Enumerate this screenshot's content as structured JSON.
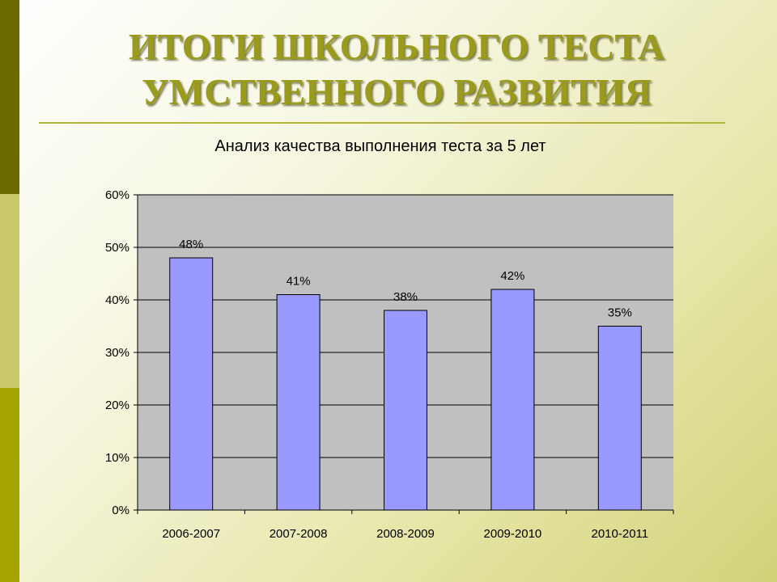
{
  "slide": {
    "title_line1": "ИТОГИ ШКОЛЬНОГО ТЕСТА",
    "title_line2": "УМСТВЕННОГО РАЗВИТИЯ"
  },
  "colors": {
    "bar_fill": "#9999ff",
    "plot_background": "#c0c0c0",
    "title": "#9a9a1c"
  },
  "chart_data": {
    "type": "bar",
    "title": "Анализ качества выполнения теста за 5 лет",
    "categories": [
      "2006-2007",
      "2007-2008",
      "2008-2009",
      "2009-2010",
      "2010-2011"
    ],
    "values": [
      48,
      41,
      38,
      42,
      35
    ],
    "data_labels": [
      "48%",
      "41%",
      "38%",
      "42%",
      "35%"
    ],
    "y_ticks": [
      "0%",
      "10%",
      "20%",
      "30%",
      "40%",
      "50%",
      "60%"
    ],
    "ylim": [
      0,
      60
    ],
    "y_unit": "%",
    "grid": true,
    "legend": false
  }
}
